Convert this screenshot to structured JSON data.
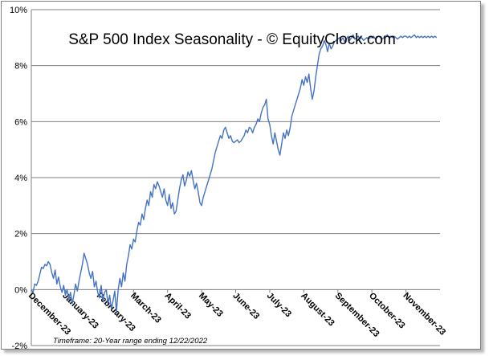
{
  "chart_data": {
    "type": "line",
    "title": "S&P 500 Index Seasonality - © EquityClock.com",
    "footnote": "Timeframe: 20-Year range ending 12/22/2022",
    "xlabel": "",
    "ylabel": "",
    "y_tick_labels": [
      "10%",
      "8%",
      "6%",
      "4%",
      "2%",
      "0%",
      "-2%"
    ],
    "y_tick_values": [
      10,
      8,
      6,
      4,
      2,
      0,
      -2
    ],
    "ylim": [
      -2,
      10
    ],
    "grid": true,
    "categories": [
      "December-23",
      "January-23",
      "February-23",
      "March-23",
      "April-23",
      "May-23",
      "June-23",
      "July-23",
      "August-23",
      "September-23",
      "October-23",
      "November-23"
    ],
    "series": [
      {
        "name": "S&P 500 Index Seasonality",
        "color": "#4472c4",
        "x": [
          0,
          0.05,
          0.1,
          0.15,
          0.2,
          0.25,
          0.3,
          0.35,
          0.4,
          0.45,
          0.5,
          0.55,
          0.6,
          0.65,
          0.7,
          0.75,
          0.8,
          0.85,
          0.9,
          0.95,
          1.0,
          1.05,
          1.1,
          1.15,
          1.2,
          1.25,
          1.3,
          1.35,
          1.4,
          1.45,
          1.5,
          1.55,
          1.6,
          1.65,
          1.7,
          1.75,
          1.8,
          1.85,
          1.9,
          1.95,
          2.0,
          2.05,
          2.1,
          2.15,
          2.2,
          2.25,
          2.3,
          2.35,
          2.4,
          2.45,
          2.5,
          2.55,
          2.6,
          2.65,
          2.7,
          2.75,
          2.8,
          2.85,
          2.9,
          2.95,
          3.0,
          3.05,
          3.1,
          3.15,
          3.2,
          3.25,
          3.3,
          3.35,
          3.4,
          3.45,
          3.5,
          3.55,
          3.6,
          3.65,
          3.7,
          3.75,
          3.8,
          3.85,
          3.9,
          3.95,
          4.0,
          4.05,
          4.1,
          4.15,
          4.2,
          4.25,
          4.3,
          4.35,
          4.4,
          4.45,
          4.5,
          4.55,
          4.6,
          4.65,
          4.7,
          4.75,
          4.8,
          4.85,
          4.9,
          4.95,
          5.0,
          5.05,
          5.1,
          5.15,
          5.2,
          5.25,
          5.3,
          5.35,
          5.4,
          5.45,
          5.5,
          5.55,
          5.6,
          5.65,
          5.7,
          5.75,
          5.8,
          5.85,
          5.9,
          5.95,
          6.0,
          6.05,
          6.1,
          6.15,
          6.2,
          6.25,
          6.3,
          6.35,
          6.4,
          6.45,
          6.5,
          6.55,
          6.6,
          6.65,
          6.7,
          6.75,
          6.8,
          6.85,
          6.9,
          6.95,
          7.0,
          7.05,
          7.1,
          7.15,
          7.2,
          7.25,
          7.3,
          7.35,
          7.4,
          7.45,
          7.5,
          7.55,
          7.6,
          7.65,
          7.7,
          7.75,
          7.8,
          7.85,
          7.9,
          7.95,
          8.0,
          8.05,
          8.1,
          8.15,
          8.2,
          8.25,
          8.3,
          8.35,
          8.4,
          8.45,
          8.5,
          8.55,
          8.6,
          8.65,
          8.7,
          8.75,
          8.8,
          8.85,
          8.9,
          8.95,
          9.0,
          9.05,
          9.1,
          9.15,
          9.2,
          9.25,
          9.3,
          9.35,
          9.4,
          9.45,
          9.5,
          9.55,
          9.6,
          9.65,
          9.7,
          9.75,
          9.8,
          9.85,
          9.9,
          9.95,
          10.0,
          10.05,
          10.1,
          10.15,
          10.2,
          10.25,
          10.3,
          10.35,
          10.4,
          10.45,
          10.5,
          10.55,
          10.6,
          10.65,
          10.7,
          10.75,
          10.8,
          10.85,
          10.9,
          10.95,
          11.0,
          11.05,
          11.1,
          11.15,
          11.2,
          11.25,
          11.3,
          11.35,
          11.4,
          11.45,
          11.5,
          11.55,
          11.6,
          11.65,
          11.7,
          11.75,
          11.8,
          11.85,
          11.9
        ],
        "values": [
          0.0,
          -0.1,
          0.2,
          0.15,
          0.3,
          0.55,
          0.8,
          0.75,
          0.9,
          0.85,
          1.0,
          0.9,
          0.6,
          0.4,
          0.7,
          0.2,
          0.45,
          0.1,
          -0.1,
          0.15,
          -0.2,
          0.0,
          -0.35,
          -0.1,
          -0.5,
          -0.2,
          0.2,
          -0.05,
          0.3,
          0.6,
          0.9,
          1.3,
          1.1,
          0.9,
          0.6,
          0.4,
          0.65,
          0.1,
          0.3,
          -0.1,
          -0.3,
          0.15,
          -0.4,
          -0.1,
          0.0,
          -0.5,
          -0.2,
          -0.7,
          -0.4,
          -0.05,
          -0.8,
          0.0,
          0.4,
          0.1,
          0.6,
          0.3,
          0.9,
          1.2,
          1.6,
          1.45,
          1.8,
          1.7,
          2.1,
          2.4,
          2.3,
          2.7,
          2.5,
          2.9,
          3.2,
          3.0,
          3.5,
          3.3,
          3.75,
          3.6,
          3.85,
          3.7,
          3.5,
          3.3,
          3.6,
          3.2,
          3.0,
          3.4,
          2.9,
          3.1,
          2.7,
          2.8,
          3.2,
          3.6,
          3.9,
          4.1,
          3.7,
          3.9,
          4.2,
          4.05,
          4.25,
          3.9,
          3.6,
          3.8,
          3.5,
          3.1,
          3.0,
          3.3,
          3.5,
          3.7,
          3.9,
          4.1,
          4.3,
          4.6,
          4.9,
          5.1,
          5.3,
          5.5,
          5.4,
          5.7,
          5.8,
          5.6,
          5.4,
          5.5,
          5.3,
          5.25,
          5.3,
          5.35,
          5.25,
          5.3,
          5.4,
          5.5,
          5.7,
          5.6,
          5.8,
          5.75,
          5.6,
          5.8,
          5.9,
          6.1,
          6.0,
          6.3,
          6.5,
          6.6,
          6.8,
          6.1,
          5.9,
          5.5,
          5.2,
          5.6,
          5.3,
          5.0,
          4.8,
          5.2,
          5.6,
          5.4,
          5.7,
          5.5,
          5.8,
          6.2,
          6.4,
          6.6,
          6.8,
          7.0,
          7.2,
          7.5,
          7.3,
          7.6,
          7.4,
          7.7,
          7.2,
          6.8,
          7.1,
          7.6,
          8.0,
          8.4,
          8.6,
          8.7,
          8.9,
          8.75,
          8.5,
          8.8,
          8.6,
          8.7,
          8.85,
          8.9,
          8.95,
          9.0,
          8.9,
          9.0,
          8.85,
          8.95,
          9.05,
          8.9,
          9.0,
          9.1,
          8.95,
          9.0,
          9.05,
          8.95,
          9.0,
          8.9,
          8.95,
          9.0,
          8.95,
          9.0,
          9.0,
          9.05,
          8.95,
          9.0,
          9.05,
          9.0,
          8.95,
          9.0,
          9.05,
          9.1,
          9.0,
          9.05,
          9.0,
          9.05,
          9.0,
          8.95,
          9.0,
          9.05,
          9.0,
          9.05,
          9.05,
          9.0,
          9.05,
          9.0,
          9.05,
          9.1,
          9.0,
          9.05,
          9.0,
          9.05,
          9.0,
          9.05,
          9.0,
          9.05,
          9.0,
          9.05,
          9.0,
          9.05,
          9.0
        ]
      }
    ]
  }
}
